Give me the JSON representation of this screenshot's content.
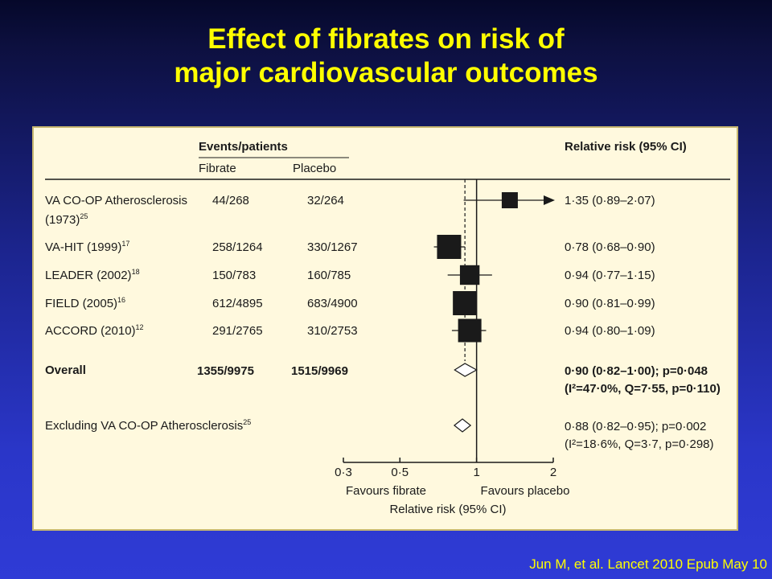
{
  "slide": {
    "title_line1": "Effect of fibrates on risk of",
    "title_line2": "major cardiovascular outcomes",
    "citation": "Jun M, et al. Lancet 2010 Epub May 10"
  },
  "colors": {
    "title": "#ffff00",
    "citation": "#ffff00",
    "panel_background": "#fff9de",
    "marker": "#1a1a1a"
  },
  "chart_data": {
    "type": "forest",
    "header": {
      "group_label": "Events/patients",
      "col_fibrate": "Fibrate",
      "col_placebo": "Placebo",
      "col_rr": "Relative risk (95% CI)"
    },
    "rows": [
      {
        "label": "VA CO-OP Atherosclerosis",
        "label_line2": "(1973)",
        "ref": "25",
        "fibrate": "44/268",
        "placebo": "32/264",
        "rr_text": "1·35 (0·89–2·07)",
        "rr": 1.35,
        "ci_low": 0.89,
        "ci_high": 2.07,
        "weight": 0.5,
        "ci_exceeds_axis": true
      },
      {
        "label": "VA-HIT (1999)",
        "ref": "17",
        "fibrate": "258/1264",
        "placebo": "330/1267",
        "rr_text": "0·78 (0·68–0·90)",
        "rr": 0.78,
        "ci_low": 0.68,
        "ci_high": 0.9,
        "weight": 1.0
      },
      {
        "label": "LEADER (2002)",
        "ref": "18",
        "fibrate": "150/783",
        "placebo": "160/785",
        "rr_text": "0·94 (0·77–1·15)",
        "rr": 0.94,
        "ci_low": 0.77,
        "ci_high": 1.15,
        "weight": 0.72
      },
      {
        "label": "FIELD (2005)",
        "ref": "16",
        "fibrate": "612/4895",
        "placebo": "683/4900",
        "rr_text": "0·90 (0·81–0·99)",
        "rr": 0.9,
        "ci_low": 0.81,
        "ci_high": 0.99,
        "weight": 1.0
      },
      {
        "label": "ACCORD (2010)",
        "ref": "12",
        "fibrate": "291/2765",
        "placebo": "310/2753",
        "rr_text": "0·94 (0·80–1·09)",
        "rr": 0.94,
        "ci_low": 0.8,
        "ci_high": 1.09,
        "weight": 0.95
      }
    ],
    "overall": {
      "label": "Overall",
      "fibrate": "1355/9975",
      "placebo": "1515/9969",
      "rr_text": "0·90 (0·82–1·00); p=0·048",
      "het_text": "(I²=47·0%, Q=7·55, p=0·110)",
      "rr": 0.9,
      "ci_low": 0.82,
      "ci_high": 1.0
    },
    "excluding": {
      "label": "Excluding VA CO-OP Atherosclerosis",
      "ref": "25",
      "rr_text": "0·88 (0·82–0·95); p=0·002",
      "het_text": "(I²=18·6%, Q=3·7, p=0·298)",
      "rr": 0.88,
      "ci_low": 0.82,
      "ci_high": 0.95
    },
    "axis": {
      "scale": "log",
      "ticks": [
        0.3,
        0.5,
        1,
        2
      ],
      "tick_labels": [
        "0·3",
        "0·5",
        "1",
        "2"
      ],
      "xlim": [
        0.3,
        2
      ],
      "xlabel": "Relative risk (95% CI)",
      "favours_left": "Favours fibrate",
      "favours_right": "Favours placebo"
    },
    "reference_line": 1,
    "pooled_line": 0.9
  }
}
